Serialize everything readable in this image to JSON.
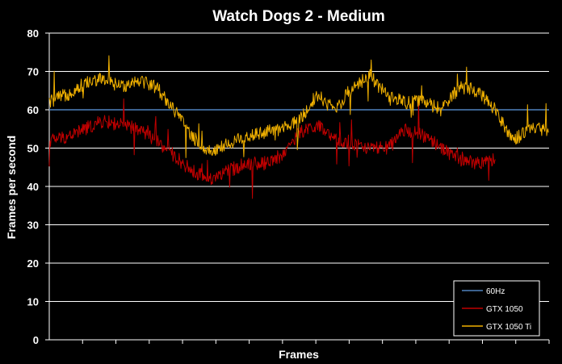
{
  "chart_data": {
    "type": "line",
    "title": "Watch Dogs 2 - Medium",
    "xlabel": "Frames",
    "ylabel": "Frames per second",
    "ylim": [
      0,
      80
    ],
    "yticks": [
      0,
      10,
      20,
      30,
      40,
      50,
      60,
      70,
      80
    ],
    "grid": true,
    "legend_position": "bottom-right",
    "x": [
      0,
      50,
      100,
      150,
      200,
      250,
      300,
      350,
      400,
      450,
      500,
      550,
      600,
      650,
      700,
      750,
      800,
      850,
      900,
      950,
      1000,
      1050,
      1100,
      1150,
      1200,
      1250,
      1300,
      1350,
      1400
    ],
    "series": [
      {
        "name": "60Hz",
        "color": "#4f81bd",
        "x": [
          0,
          1400
        ],
        "values": [
          60,
          60
        ]
      },
      {
        "name": "GTX 1050",
        "color": "#c00000",
        "values": [
          52,
          53,
          55,
          57,
          56,
          55,
          52,
          48,
          44,
          42,
          44,
          46,
          46,
          48,
          54,
          56,
          52,
          51,
          50,
          50,
          55,
          53,
          50,
          47,
          46,
          47,
          null,
          null,
          null
        ]
      },
      {
        "name": "GTX 1050 Ti",
        "color": "#f0b000",
        "values": [
          62,
          64,
          67,
          68,
          66,
          68,
          66,
          60,
          53,
          49,
          51,
          53,
          54,
          55,
          57,
          64,
          60,
          66,
          69,
          63,
          62,
          62,
          60,
          66,
          65,
          60,
          52,
          55,
          55
        ]
      }
    ],
    "x_tick_count": 15
  }
}
